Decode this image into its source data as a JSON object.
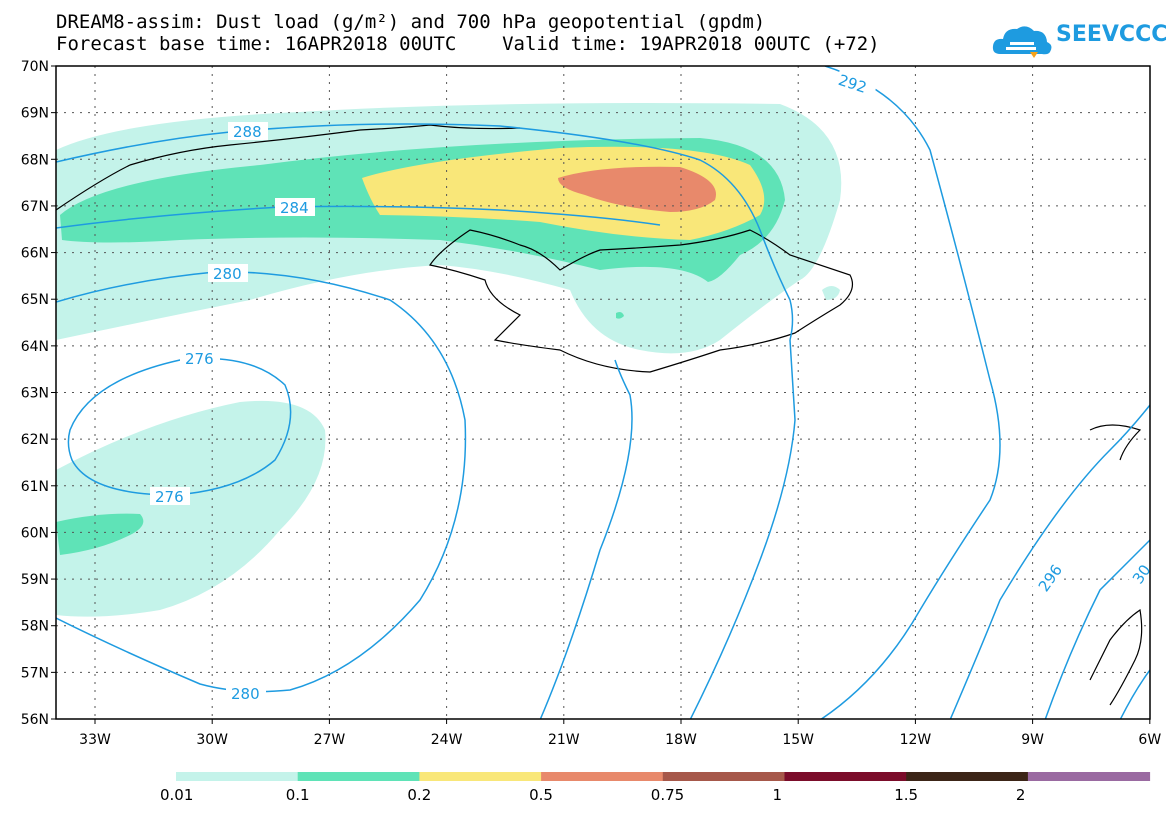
{
  "header": {
    "title_line1": "DREAM8-assim: Dust load (g/m²) and 700 hPa geopotential (gpdm)",
    "title_line2": "Forecast base time: 16APR2018 00UTC    Valid time: 19APR2018 00UTC (+72)"
  },
  "logo": {
    "text": "SEEVCCC",
    "icon": "cloud-icon",
    "color": "#1e9be0"
  },
  "map": {
    "lat_labels": [
      "70N",
      "69N",
      "68N",
      "67N",
      "66N",
      "65N",
      "64N",
      "63N",
      "62N",
      "61N",
      "60N",
      "59N",
      "58N",
      "57N",
      "56N"
    ],
    "lon_labels": [
      "33W",
      "30W",
      "27W",
      "24W",
      "21W",
      "18W",
      "15W",
      "12W",
      "9W",
      "6W"
    ],
    "contour_labels": [
      "288",
      "284",
      "280",
      "276",
      "276",
      "280",
      "292",
      "296",
      "30"
    ],
    "contour_color": "#1e9be0"
  },
  "legend": {
    "colors": [
      "#c4f3ea",
      "#5fe3b7",
      "#f9e779",
      "#e8896b",
      "#a6584a",
      "#7b0c2a",
      "#3c2517",
      "#9a6aa1"
    ],
    "labels": [
      "0.01",
      "0.1",
      "0.2",
      "0.5",
      "0.75",
      "1",
      "1.5",
      "2"
    ]
  }
}
